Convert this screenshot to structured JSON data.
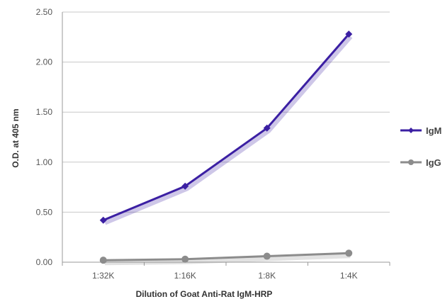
{
  "chart_data": {
    "type": "line",
    "title": "",
    "xlabel": "Dilution of Goat Anti-Rat IgM-HRP",
    "ylabel": "O.D. at 405 nm",
    "categories": [
      "1:32K",
      "1:16K",
      "1:8K",
      "1:4K"
    ],
    "ylim": [
      0,
      2.5
    ],
    "yticks": [
      "0.00",
      "0.50",
      "1.00",
      "1.50",
      "2.00",
      "2.50"
    ],
    "grid": true,
    "legend_position": "right",
    "series": [
      {
        "name": "IgM",
        "values": [
          0.42,
          0.76,
          1.34,
          2.28
        ],
        "color": "#3b1fa3"
      },
      {
        "name": "IgG",
        "values": [
          0.02,
          0.03,
          0.06,
          0.09
        ],
        "color": "#8c8c8c"
      }
    ]
  }
}
